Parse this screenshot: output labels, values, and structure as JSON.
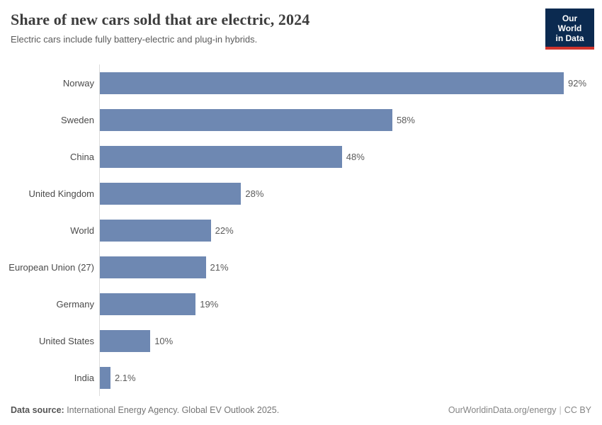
{
  "header": {
    "title": "Share of new cars sold that are electric, 2024",
    "subtitle": "Electric cars include fully battery-electric and plug-in hybrids.",
    "logo": {
      "line1": "Our World",
      "line2": "in Data"
    }
  },
  "chart_data": {
    "type": "bar",
    "orientation": "horizontal",
    "title": "Share of new cars sold that are electric, 2024",
    "subtitle": "Electric cars include fully battery-electric and plug-in hybrids.",
    "categories": [
      "Norway",
      "Sweden",
      "China",
      "United Kingdom",
      "World",
      "European Union (27)",
      "Germany",
      "United States",
      "India"
    ],
    "values": [
      92,
      58,
      48,
      28,
      22,
      21,
      19,
      10,
      2.1
    ],
    "value_labels": [
      "92%",
      "58%",
      "48%",
      "28%",
      "22%",
      "21%",
      "19%",
      "10%",
      "2.1%"
    ],
    "xlabel": "",
    "ylabel": "",
    "xlim": [
      0,
      95
    ],
    "grid": false,
    "legend": false,
    "bar_color": "#6e88b2",
    "axis_color": "#dcdcdc"
  },
  "footer": {
    "datasource_label": "Data source:",
    "datasource_text": " International Energy Agency. Global EV Outlook 2025.",
    "link": "OurWorldinData.org/energy",
    "separator": "|",
    "license": "CC BY"
  },
  "colors": {
    "bar": "#6e88b2",
    "logo_navy": "#0b2a50",
    "logo_red": "#d0342c",
    "title_text": "#3d3d3d",
    "muted_text": "#5b5b5b"
  }
}
